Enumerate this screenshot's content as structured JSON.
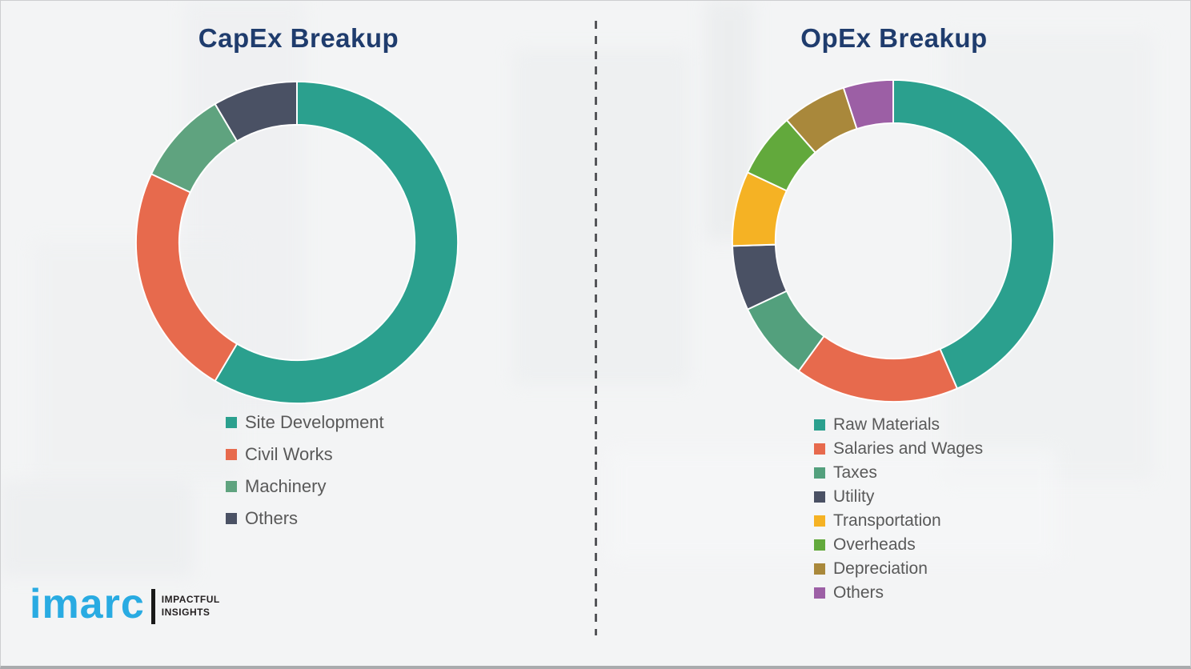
{
  "canvas": {
    "background_color": "#f3f4f5",
    "divider_color": "#55565a",
    "slice_gap_color": "#ffffff",
    "title_color": "#1f3c6d",
    "legend_text_color": "#595959"
  },
  "chart_data": [
    {
      "type": "donut",
      "title": "CapEx Breakup",
      "categories": [
        "Site Development",
        "Civil Works",
        "Machinery",
        "Others"
      ],
      "values": [
        58.5,
        23.5,
        9.5,
        8.5
      ],
      "colors": [
        "#2ba08e",
        "#e76a4d",
        "#5fa37f",
        "#4a5164"
      ],
      "start_angle_deg": 0,
      "direction": "clockwise",
      "inner_radius_ratio": 0.73,
      "legend_position": "below-left-column",
      "data_labels": "none"
    },
    {
      "type": "donut",
      "title": "OpEx Breakup",
      "categories": [
        "Raw Materials",
        "Salaries and Wages",
        "Taxes",
        "Utility",
        "Transportation",
        "Overheads",
        "Depreciation",
        "Others"
      ],
      "values": [
        43.5,
        16.5,
        8,
        6.5,
        7.5,
        6.5,
        6.5,
        5
      ],
      "colors": [
        "#2ba08e",
        "#e76a4d",
        "#53a07d",
        "#4a5164",
        "#f5b224",
        "#62a93c",
        "#a9883b",
        "#9c5fa5"
      ],
      "start_angle_deg": 0,
      "direction": "clockwise",
      "inner_radius_ratio": 0.73,
      "legend_position": "below-left-column",
      "data_labels": "none"
    }
  ],
  "footer": {
    "logo_text": "imarc",
    "logo_color": "#29abe2",
    "tagline_lines": [
      "IMPACTFUL",
      "INSIGHTS"
    ]
  }
}
